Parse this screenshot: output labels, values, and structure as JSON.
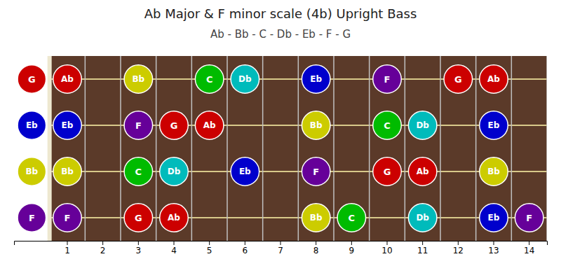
{
  "chart_data": {
    "type": "fretboard",
    "title": "Ab Major & F minor scale (4b) Upright Bass",
    "subtitle": "Ab - Bb - C - Db - Eb - F - G",
    "categories": [
      null,
      "1",
      "2",
      "3",
      "4",
      "5",
      "6",
      "7",
      "8",
      "9",
      "10",
      "11",
      "12",
      "13",
      "14"
    ],
    "ylim": [
      0.5,
      4.5
    ],
    "yticks": [],
    "tick_labels": "x",
    "notes": {
      "fret": [
        0,
        0,
        0,
        0,
        1,
        3,
        5,
        6,
        8,
        10,
        12,
        13,
        1,
        3,
        4,
        5,
        8,
        10,
        11,
        13,
        1,
        3,
        4,
        6,
        8,
        10,
        11,
        13,
        1,
        3,
        4,
        8,
        9,
        11,
        13,
        14
      ],
      "string": [
        1,
        2,
        3,
        4,
        1,
        1,
        1,
        1,
        1,
        1,
        1,
        1,
        2,
        2,
        2,
        2,
        2,
        2,
        2,
        2,
        3,
        3,
        3,
        3,
        3,
        3,
        3,
        3,
        4,
        4,
        4,
        4,
        4,
        4,
        4,
        4
      ],
      "labels": [
        "G",
        "Eb",
        "Bb",
        "F",
        "Ab",
        "Bb",
        "C",
        "Db",
        "Eb",
        "F",
        "G",
        "Ab",
        "Eb",
        "F",
        "G",
        "Ab",
        "Bb",
        "C",
        "Db",
        "Eb",
        "Bb",
        "C",
        "Db",
        "Eb",
        "F",
        "G",
        "Ab",
        "Bb",
        "F",
        "G",
        "Ab",
        "Bb",
        "C",
        "Db",
        "Eb",
        "F"
      ],
      "colors": [
        "#cc0000",
        "#0000cc",
        "#cccc00",
        "#660099",
        "#cc0000",
        "#cccc00",
        "#00bb00",
        "#00bbbb",
        "#0000cc",
        "#660099",
        "#cc0000",
        "#cc0000",
        "#0000cc",
        "#660099",
        "#cc0000",
        "#cc0000",
        "#cccc00",
        "#00bb00",
        "#00bbbb",
        "#0000cc",
        "#cccc00",
        "#00bb00",
        "#00bbbb",
        "#0000cc",
        "#660099",
        "#cc0000",
        "#cc0000",
        "#cccc00",
        "#660099",
        "#cc0000",
        "#cc0000",
        "#cccc00",
        "#00bb00",
        "#00bbbb",
        "#0000cc",
        "#660099"
      ]
    }
  }
}
